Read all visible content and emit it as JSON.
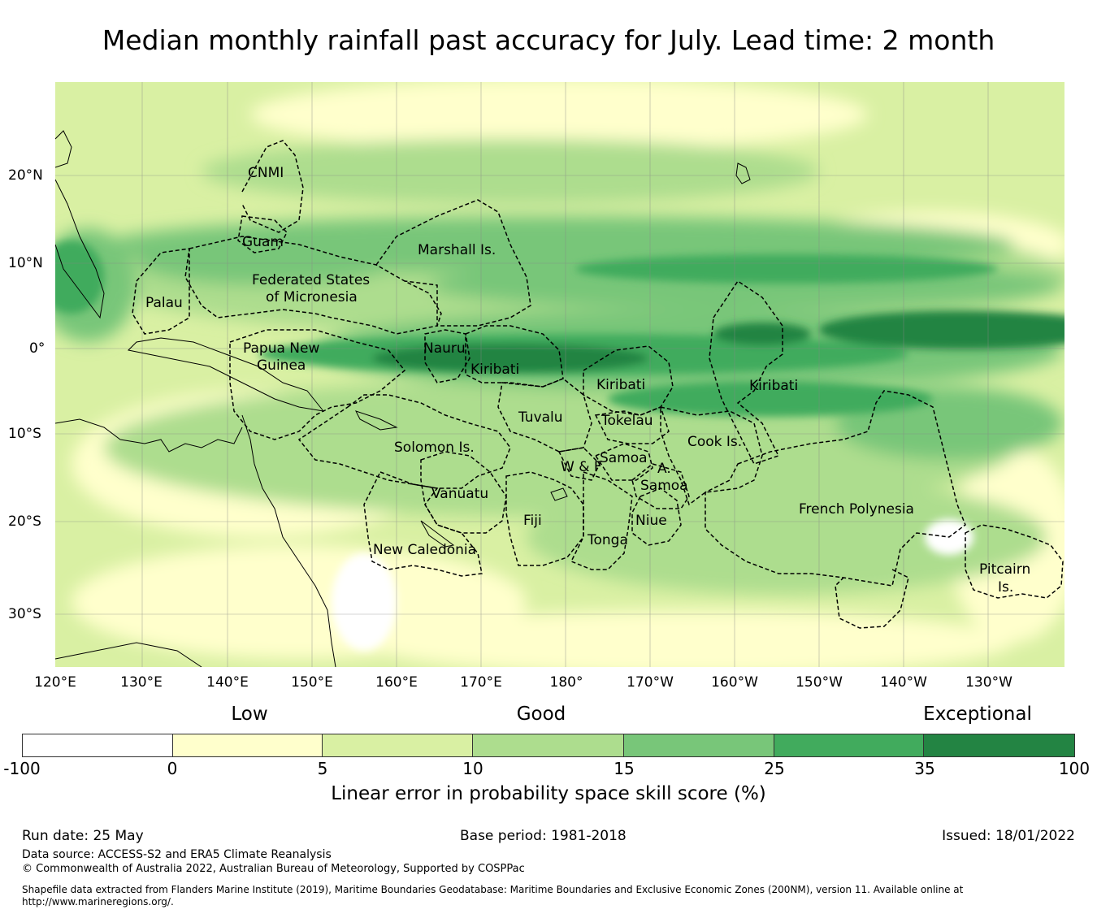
{
  "title": "Median monthly rainfall past accuracy for July. Lead time: 2 month",
  "map": {
    "lon_labels": [
      "120°E",
      "130°E",
      "140°E",
      "150°E",
      "160°E",
      "170°E",
      "180°",
      "170°W",
      "160°W",
      "150°W",
      "140°W",
      "130°W"
    ],
    "lat_labels": [
      "20°N",
      "10°N",
      "0°",
      "10°S",
      "20°S",
      "30°S"
    ],
    "regions": [
      "CNMI",
      "Guam",
      "Marshall Is.",
      "Federated States",
      "of Micronesia",
      "Palau",
      "Papua New",
      "Guinea",
      "Nauru",
      "Kiribati",
      "Kiribati",
      "Kiribati",
      "Tuvalu",
      "Tokelau",
      "Cook Is.",
      "Solomon Is.",
      "Samoa",
      "W & F",
      "A.",
      "Samoa",
      "Vanuatu",
      "Fiji",
      "Niue",
      "Tonga",
      "French Polynesia",
      "New Caledonia",
      "Pitcairn",
      "Is."
    ]
  },
  "legend": {
    "categories": [
      "Low",
      "Good",
      "Exceptional"
    ],
    "ticks": [
      "-100",
      "0",
      "5",
      "10",
      "15",
      "25",
      "35",
      "100"
    ],
    "colors": [
      "#ffffff",
      "#ffffcc",
      "#d9f0a3",
      "#addd8e",
      "#78c679",
      "#41ab5d",
      "#238443"
    ],
    "label": "Linear error in probability space skill score (%)"
  },
  "footer": {
    "run_date": "Run date: 25 May",
    "base_period": "Base period: 1981-2018",
    "issued": "Issued: 18/01/2022",
    "data_source": "Data source: ACCESS-S2 and ERA5 Climate Reanalysis",
    "copyright": "© Commonwealth of Australia 2022, Australian Bureau of Meteorology, Supported by COSPPac",
    "shapefile_1": "Shapefile data extracted from Flanders Marine Institute (2019), Maritime Boundaries Geodatabase: Maritime Boundaries and Exclusive Economic Zones (200NM), version 11. Available online at",
    "shapefile_2": "http://www.marineregions.org/."
  }
}
